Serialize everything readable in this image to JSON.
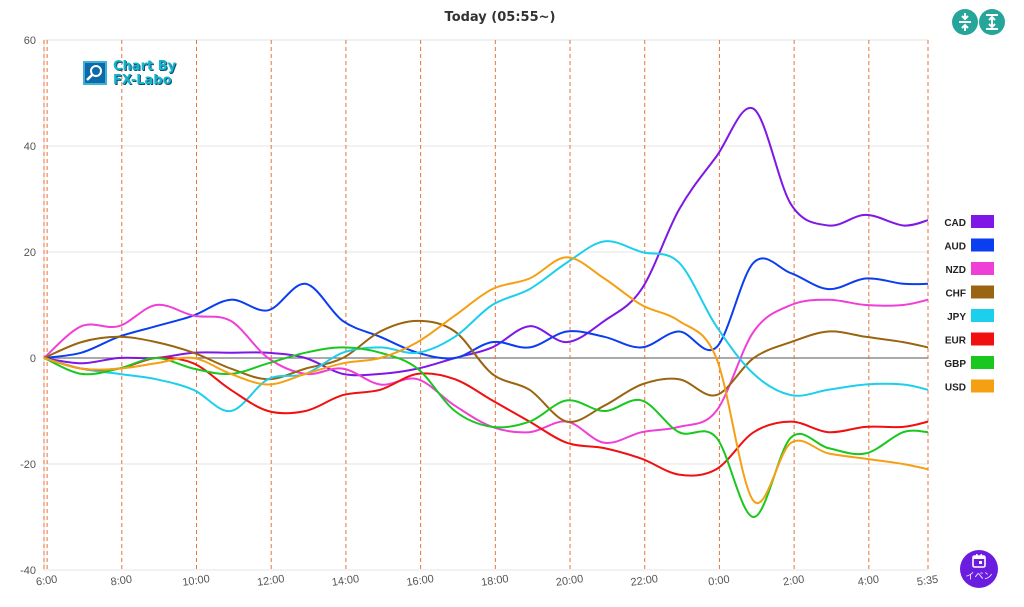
{
  "header": {
    "title": "Today  (05:55~)"
  },
  "toolbar": {
    "compress_icon": "compress-vertical-icon",
    "expand_icon": "expand-vertical-icon"
  },
  "logo": {
    "line1": "Chart By",
    "line2": "FX-Labo"
  },
  "event_button": {
    "label": "イベン",
    "icon": "calendar-icon",
    "color": "#6a1de0"
  },
  "chart_data": {
    "type": "line",
    "title": "Today  (05:55~)",
    "xlabel": "",
    "ylabel": "",
    "ylim": [
      -40,
      60
    ],
    "y_ticks": [
      -40,
      -20,
      0,
      20,
      40,
      60
    ],
    "x_tick_labels": [
      "6:00",
      "8:00",
      "10:00",
      "12:00",
      "14:00",
      "16:00",
      "18:00",
      "20:00",
      "22:00",
      "0:00",
      "2:00",
      "4:00",
      "5:35"
    ],
    "x_tick_hours": [
      0.083,
      2.083,
      4.083,
      6.083,
      8.083,
      10.083,
      12.083,
      14.083,
      16.083,
      18.083,
      20.083,
      22.083,
      23.667
    ],
    "grid": true,
    "legend_position": "right",
    "x": [
      0,
      1,
      2,
      3,
      4,
      5,
      6,
      7,
      8,
      9,
      10,
      11,
      12,
      13,
      14,
      15,
      16,
      17,
      18,
      19,
      20,
      21,
      22,
      23,
      23.67
    ],
    "series": [
      {
        "name": "CAD",
        "color": "#7f17e6",
        "values": [
          0,
          -1,
          0,
          0,
          1,
          1,
          1,
          0,
          -3,
          -3,
          -2,
          0,
          2,
          6,
          3,
          7,
          13,
          28,
          38,
          47,
          29,
          25,
          27,
          25,
          26
        ]
      },
      {
        "name": "AUD",
        "color": "#0a3ef0",
        "values": [
          0,
          1,
          4,
          6,
          8,
          11,
          9,
          14,
          7,
          4,
          1,
          0,
          3,
          2,
          5,
          4,
          2,
          5,
          2,
          18,
          16,
          13,
          15,
          14,
          14
        ]
      },
      {
        "name": "NZD",
        "color": "#f03fd6",
        "values": [
          0,
          6,
          6,
          10,
          8,
          7,
          0,
          -3,
          -2,
          -5,
          -4,
          -9,
          -13,
          -14,
          -12,
          -16,
          -14,
          -13,
          -10,
          5,
          10,
          11,
          10,
          10,
          11
        ]
      },
      {
        "name": "CHF",
        "color": "#9a6410",
        "values": [
          0,
          3,
          4,
          3,
          1,
          -2,
          -4,
          -2,
          0,
          5,
          7,
          5,
          -3,
          -6,
          -12,
          -9,
          -5,
          -4,
          -7,
          0,
          3,
          5,
          4,
          3,
          2
        ]
      },
      {
        "name": "JPY",
        "color": "#1ccfeb",
        "values": [
          0,
          -2,
          -3,
          -4,
          -6,
          -10,
          -4,
          -3,
          1,
          2,
          1,
          4,
          10,
          13,
          18,
          22,
          20,
          18,
          6,
          -3,
          -7,
          -6,
          -5,
          -5,
          -6
        ]
      },
      {
        "name": "EUR",
        "color": "#f01010",
        "values": [
          0,
          -2,
          -2,
          0,
          -1,
          -6,
          -10,
          -10,
          -7,
          -6,
          -3,
          -4,
          -8,
          -12,
          -16,
          -17,
          -19,
          -22,
          -21,
          -14,
          -12,
          -14,
          -13,
          -13,
          -12
        ]
      },
      {
        "name": "GBP",
        "color": "#19c81e",
        "values": [
          0,
          -3,
          -2,
          0,
          -2,
          -3,
          -1,
          1,
          2,
          1,
          -2,
          -10,
          -13,
          -12,
          -8,
          -10,
          -8,
          -14,
          -15,
          -30,
          -15,
          -17,
          -18,
          -14,
          -14
        ]
      },
      {
        "name": "USD",
        "color": "#f5a012",
        "values": [
          0,
          -2,
          -2,
          -1,
          0,
          -3,
          -5,
          -3,
          -1,
          0,
          3,
          8,
          13,
          15,
          19,
          15,
          10,
          7,
          0,
          -27,
          -16,
          -18,
          -19,
          -20,
          -21
        ]
      }
    ]
  }
}
